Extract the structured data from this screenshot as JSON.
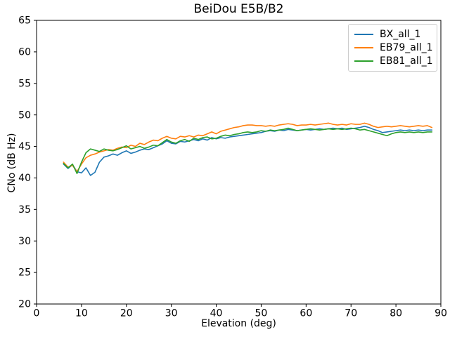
{
  "window": {
    "title": "BeiDou E5B/B2"
  },
  "chart_data": {
    "type": "line",
    "title": "BeiDou E5B/B2",
    "xlabel": "Elevation (deg)",
    "ylabel": "CNo (dB Hz)",
    "xlim": [
      0,
      90
    ],
    "ylim": [
      20,
      65
    ],
    "xticks": [
      0,
      10,
      20,
      30,
      40,
      50,
      60,
      70,
      80,
      90
    ],
    "yticks": [
      20,
      25,
      30,
      35,
      40,
      45,
      50,
      55,
      60,
      65
    ],
    "grid": false,
    "legend_position": "upper right",
    "x": [
      6,
      7,
      8,
      9,
      10,
      11,
      12,
      13,
      14,
      15,
      16,
      17,
      18,
      19,
      20,
      21,
      22,
      23,
      24,
      25,
      26,
      27,
      28,
      29,
      30,
      31,
      32,
      33,
      34,
      35,
      36,
      37,
      38,
      39,
      40,
      41,
      42,
      43,
      44,
      45,
      46,
      47,
      48,
      49,
      50,
      51,
      52,
      53,
      54,
      55,
      56,
      57,
      58,
      59,
      60,
      61,
      62,
      63,
      64,
      65,
      66,
      67,
      68,
      69,
      70,
      71,
      72,
      73,
      74,
      75,
      76,
      77,
      78,
      79,
      80,
      81,
      82,
      83,
      84,
      85,
      86,
      87,
      88
    ],
    "series": [
      {
        "name": "BX_all_1",
        "color": "#1f77b4",
        "values": [
          42.2,
          41.5,
          42.1,
          41.0,
          40.8,
          41.6,
          40.4,
          40.9,
          42.5,
          43.3,
          43.5,
          43.8,
          43.6,
          44.0,
          44.3,
          43.9,
          44.1,
          44.4,
          44.6,
          44.5,
          44.8,
          45.1,
          45.4,
          45.9,
          45.5,
          45.4,
          45.8,
          45.7,
          45.9,
          46.1,
          45.9,
          46.2,
          46.0,
          46.4,
          46.2,
          46.4,
          46.3,
          46.5,
          46.6,
          46.7,
          46.8,
          46.9,
          47.0,
          47.1,
          47.2,
          47.4,
          47.5,
          47.4,
          47.6,
          47.5,
          47.7,
          47.6,
          47.5,
          47.6,
          47.7,
          47.6,
          47.7,
          47.8,
          47.7,
          47.8,
          47.9,
          47.8,
          47.9,
          47.7,
          47.8,
          47.9,
          48.0,
          48.2,
          48.0,
          47.7,
          47.5,
          47.2,
          47.3,
          47.4,
          47.5,
          47.6,
          47.5,
          47.6,
          47.5,
          47.6,
          47.5,
          47.6,
          47.6
        ]
      },
      {
        "name": "EB79_all_1",
        "color": "#ff7f0e",
        "values": [
          42.5,
          41.7,
          42.0,
          41.0,
          42.2,
          43.2,
          43.6,
          43.8,
          44.1,
          44.3,
          44.5,
          44.4,
          44.7,
          44.9,
          44.8,
          45.2,
          45.0,
          45.5,
          45.3,
          45.7,
          46.0,
          45.9,
          46.3,
          46.6,
          46.3,
          46.2,
          46.6,
          46.5,
          46.7,
          46.5,
          46.8,
          46.7,
          47.0,
          47.3,
          47.0,
          47.4,
          47.6,
          47.8,
          48.0,
          48.1,
          48.3,
          48.4,
          48.4,
          48.3,
          48.3,
          48.2,
          48.3,
          48.2,
          48.4,
          48.5,
          48.6,
          48.5,
          48.3,
          48.4,
          48.4,
          48.5,
          48.4,
          48.5,
          48.6,
          48.7,
          48.5,
          48.4,
          48.5,
          48.4,
          48.6,
          48.5,
          48.5,
          48.7,
          48.5,
          48.2,
          48.0,
          48.1,
          48.2,
          48.1,
          48.2,
          48.3,
          48.2,
          48.1,
          48.2,
          48.3,
          48.2,
          48.3,
          48.0
        ]
      },
      {
        "name": "EB81_all_1",
        "color": "#2ca02c",
        "values": [
          42.3,
          41.6,
          42.2,
          40.7,
          42.5,
          44.0,
          44.6,
          44.4,
          44.2,
          44.6,
          44.4,
          44.3,
          44.5,
          44.8,
          45.1,
          44.6,
          44.8,
          45.0,
          44.7,
          44.9,
          45.2,
          45.1,
          45.6,
          46.1,
          45.7,
          45.5,
          45.9,
          46.1,
          45.8,
          46.3,
          46.1,
          46.4,
          46.5,
          46.2,
          46.3,
          46.6,
          46.8,
          46.7,
          46.9,
          47.0,
          47.2,
          47.3,
          47.2,
          47.3,
          47.5,
          47.4,
          47.6,
          47.5,
          47.6,
          47.7,
          47.9,
          47.7,
          47.5,
          47.6,
          47.7,
          47.8,
          47.7,
          47.6,
          47.7,
          47.8,
          47.7,
          47.8,
          47.7,
          47.8,
          47.9,
          47.8,
          47.6,
          47.7,
          47.5,
          47.3,
          47.1,
          46.9,
          46.7,
          47.0,
          47.2,
          47.3,
          47.2,
          47.3,
          47.2,
          47.3,
          47.2,
          47.3,
          47.3
        ]
      }
    ],
    "axes": {
      "spine_color": "#000000",
      "background": "#ffffff",
      "tick_length": 4
    }
  }
}
